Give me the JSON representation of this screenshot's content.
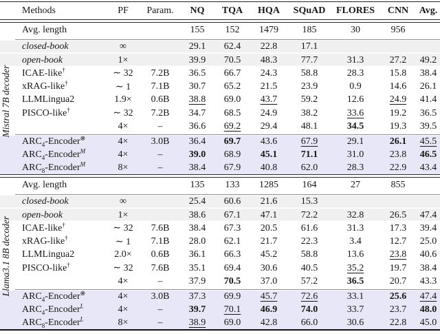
{
  "header": {
    "columns": [
      {
        "label": "Methods",
        "bold": false
      },
      {
        "label": "PF",
        "bold": false
      },
      {
        "label": "Param.",
        "bold": false
      },
      {
        "label": "NQ",
        "bold": true
      },
      {
        "label": "TQA",
        "bold": true
      },
      {
        "label": "HQA",
        "bold": true
      },
      {
        "label": "SQuAD",
        "bold": true
      },
      {
        "label": "FLORES",
        "bold": true
      },
      {
        "label": "CNN",
        "bold": true
      },
      {
        "label": "Avg.",
        "bold": true
      }
    ]
  },
  "colors": {
    "stripe": "#f0f0f0",
    "highlight": "#e7e7f7",
    "rule_dark": "#222222",
    "rule_gray": "#8f8f8f",
    "text": "#161616"
  },
  "sections": [
    {
      "label": "Mistral 7B decoder",
      "avg_length_label": "Avg. length",
      "avg_length": [
        "155",
        "152",
        "1479",
        "185",
        "30",
        "956",
        ""
      ],
      "rows": [
        {
          "method": {
            "parts": [
              {
                "t": "closed-book"
              }
            ],
            "italic": true
          },
          "pf": "∞",
          "param": "",
          "shade": true,
          "cells": [
            {
              "v": "29.1"
            },
            {
              "v": "62.4"
            },
            {
              "v": "22.8"
            },
            {
              "v": "17.1"
            },
            {
              "v": ""
            },
            {
              "v": ""
            },
            {
              "v": ""
            }
          ]
        },
        {
          "method": {
            "parts": [
              {
                "t": "open-book"
              }
            ],
            "italic": true
          },
          "pf": "1×",
          "param": "",
          "shade": true,
          "cells": [
            {
              "v": "39.9"
            },
            {
              "v": "70.5"
            },
            {
              "v": "48.3"
            },
            {
              "v": "77.7"
            },
            {
              "v": "31.3"
            },
            {
              "v": "27.2"
            },
            {
              "v": "49.2"
            }
          ]
        },
        {
          "method": {
            "parts": [
              {
                "t": "ICAE-like"
              },
              {
                "t": "†",
                "sup": true
              }
            ]
          },
          "pf": "∼ 32",
          "param": "7.2B",
          "cells": [
            {
              "v": "36.5"
            },
            {
              "v": "66.7"
            },
            {
              "v": "24.3"
            },
            {
              "v": "58.8"
            },
            {
              "v": "28.3"
            },
            {
              "v": "15.8"
            },
            {
              "v": "38.4"
            }
          ]
        },
        {
          "method": {
            "parts": [
              {
                "t": "xRAG-like"
              },
              {
                "t": "†",
                "sup": true
              }
            ]
          },
          "pf": "∼ 1",
          "param": "7.1B",
          "cells": [
            {
              "v": "30.7"
            },
            {
              "v": "65.2"
            },
            {
              "v": "21.5"
            },
            {
              "v": "23.9"
            },
            {
              "v": "0.9"
            },
            {
              "v": "14.6"
            },
            {
              "v": "26.1"
            }
          ]
        },
        {
          "method": {
            "parts": [
              {
                "t": "LLMLingua2"
              }
            ]
          },
          "pf": "1.9×",
          "param": "0.6B",
          "cells": [
            {
              "v": "38.8",
              "f": "u"
            },
            {
              "v": "69.0"
            },
            {
              "v": "43.7",
              "f": "u"
            },
            {
              "v": "59.2"
            },
            {
              "v": "12.6"
            },
            {
              "v": "24.9",
              "f": "u"
            },
            {
              "v": "41.4"
            }
          ]
        },
        {
          "method": {
            "parts": [
              {
                "t": "PISCO-like"
              },
              {
                "t": "†",
                "sup": true
              }
            ]
          },
          "pf": "∼ 32",
          "param": "7.2B",
          "cells": [
            {
              "v": "34.7"
            },
            {
              "v": "68.5"
            },
            {
              "v": "24.9"
            },
            {
              "v": "38.2"
            },
            {
              "v": "33.6",
              "f": "u"
            },
            {
              "v": "19.2"
            },
            {
              "v": "36.5"
            }
          ]
        },
        {
          "method": {
            "parts": [
              {
                "t": ""
              }
            ]
          },
          "pf": "4×",
          "param": "–",
          "cells": [
            {
              "v": "36.6"
            },
            {
              "v": "69.2",
              "f": "u"
            },
            {
              "v": "29.4"
            },
            {
              "v": "48.1"
            },
            {
              "v": "34.5",
              "f": "b"
            },
            {
              "v": "19.3"
            },
            {
              "v": "39.5"
            }
          ]
        }
      ],
      "arc_rows": [
        {
          "method": {
            "parts": [
              {
                "t": "ARC"
              },
              {
                "t": "4",
                "sub": true
              },
              {
                "t": "-Encoder"
              },
              {
                "t": "⊗",
                "sup": true
              }
            ]
          },
          "pf": "4×",
          "param": "3.0B",
          "cells": [
            {
              "v": "36.4"
            },
            {
              "v": "69.7",
              "f": "b"
            },
            {
              "v": "43.6"
            },
            {
              "v": "67.9",
              "f": "u"
            },
            {
              "v": "29.1"
            },
            {
              "v": "26.1",
              "f": "b"
            },
            {
              "v": "45.5",
              "f": "u"
            }
          ]
        },
        {
          "method": {
            "parts": [
              {
                "t": "ARC"
              },
              {
                "t": "4",
                "sub": true
              },
              {
                "t": "-Encoder"
              },
              {
                "t": "M",
                "sup": true,
                "i": true
              }
            ]
          },
          "pf": "4×",
          "param": "–",
          "cells": [
            {
              "v": "39.0",
              "f": "b"
            },
            {
              "v": "68.9"
            },
            {
              "v": "45.1",
              "f": "b"
            },
            {
              "v": "71.1",
              "f": "b"
            },
            {
              "v": "31.0"
            },
            {
              "v": "23.8"
            },
            {
              "v": "46.5",
              "f": "b"
            }
          ]
        },
        {
          "method": {
            "parts": [
              {
                "t": "ARC"
              },
              {
                "t": "8",
                "sub": true
              },
              {
                "t": "-Encoder"
              },
              {
                "t": "M",
                "sup": true,
                "i": true
              }
            ]
          },
          "pf": "8×",
          "param": "–",
          "cells": [
            {
              "v": "38.4"
            },
            {
              "v": "67.9"
            },
            {
              "v": "40.8"
            },
            {
              "v": "62.0"
            },
            {
              "v": "28.3"
            },
            {
              "v": "22.9"
            },
            {
              "v": "43.4"
            }
          ]
        }
      ]
    },
    {
      "label": "Llama3.1 8B decoder",
      "avg_length_label": "Avg. length",
      "avg_length": [
        "135",
        "133",
        "1285",
        "164",
        "27",
        "855",
        ""
      ],
      "rows": [
        {
          "method": {
            "parts": [
              {
                "t": "closed-book"
              }
            ],
            "italic": true
          },
          "pf": "∞",
          "param": "",
          "shade": true,
          "cells": [
            {
              "v": "25.4"
            },
            {
              "v": "60.6"
            },
            {
              "v": "21.6"
            },
            {
              "v": "15.3"
            },
            {
              "v": ""
            },
            {
              "v": ""
            },
            {
              "v": ""
            }
          ]
        },
        {
          "method": {
            "parts": [
              {
                "t": "open-book"
              }
            ],
            "italic": true
          },
          "pf": "1×",
          "param": "",
          "shade": true,
          "cells": [
            {
              "v": "38.6"
            },
            {
              "v": "67.1"
            },
            {
              "v": "47.1"
            },
            {
              "v": "72.2"
            },
            {
              "v": "32.8"
            },
            {
              "v": "26.5"
            },
            {
              "v": "47.4"
            }
          ]
        },
        {
          "method": {
            "parts": [
              {
                "t": "ICAE-like"
              },
              {
                "t": "†",
                "sup": true
              }
            ]
          },
          "pf": "∼ 32",
          "param": "7.6B",
          "cells": [
            {
              "v": "38.4"
            },
            {
              "v": "67.3"
            },
            {
              "v": "20.5"
            },
            {
              "v": "61.6"
            },
            {
              "v": "31.3"
            },
            {
              "v": "17.3"
            },
            {
              "v": "39.4"
            }
          ]
        },
        {
          "method": {
            "parts": [
              {
                "t": "xRAG-like"
              },
              {
                "t": "†",
                "sup": true
              }
            ]
          },
          "pf": "∼ 1",
          "param": "7.1B",
          "cells": [
            {
              "v": "28.0"
            },
            {
              "v": "62.1"
            },
            {
              "v": "21.7"
            },
            {
              "v": "22.3"
            },
            {
              "v": "3.4"
            },
            {
              "v": "12.7"
            },
            {
              "v": "25.0"
            }
          ]
        },
        {
          "method": {
            "parts": [
              {
                "t": "LLMLingua2"
              }
            ]
          },
          "pf": "2.0×",
          "param": "0.6B",
          "cells": [
            {
              "v": "36.1"
            },
            {
              "v": "66.3"
            },
            {
              "v": "45.2"
            },
            {
              "v": "58.8"
            },
            {
              "v": "13.6"
            },
            {
              "v": "23.8",
              "f": "u"
            },
            {
              "v": "40.6"
            }
          ]
        },
        {
          "method": {
            "parts": [
              {
                "t": "PISCO-like"
              },
              {
                "t": "†",
                "sup": true
              }
            ]
          },
          "pf": "∼ 32",
          "param": "7.6B",
          "cells": [
            {
              "v": "35.1"
            },
            {
              "v": "69.4"
            },
            {
              "v": "30.6"
            },
            {
              "v": "40.5"
            },
            {
              "v": "35.2",
              "f": "u"
            },
            {
              "v": "19.7"
            },
            {
              "v": "38.4"
            }
          ]
        },
        {
          "method": {
            "parts": [
              {
                "t": ""
              }
            ]
          },
          "pf": "4×",
          "param": "–",
          "cells": [
            {
              "v": "37.9"
            },
            {
              "v": "70.5",
              "f": "b"
            },
            {
              "v": "37.0"
            },
            {
              "v": "57.2"
            },
            {
              "v": "36.5",
              "f": "b"
            },
            {
              "v": "20.7"
            },
            {
              "v": "43.3"
            }
          ]
        }
      ],
      "arc_rows": [
        {
          "method": {
            "parts": [
              {
                "t": "ARC"
              },
              {
                "t": "4",
                "sub": true
              },
              {
                "t": "-Encoder"
              },
              {
                "t": "⊗",
                "sup": true
              }
            ]
          },
          "pf": "4×",
          "param": "3.0B",
          "cells": [
            {
              "v": "37.3"
            },
            {
              "v": "69.9"
            },
            {
              "v": "45.7",
              "f": "u"
            },
            {
              "v": "72.6",
              "f": "u"
            },
            {
              "v": "33.1"
            },
            {
              "v": "25.6",
              "f": "b"
            },
            {
              "v": "47.4",
              "f": "u"
            }
          ]
        },
        {
          "method": {
            "parts": [
              {
                "t": "ARC"
              },
              {
                "t": "4",
                "sub": true
              },
              {
                "t": "-Encoder"
              },
              {
                "t": "L",
                "sup": true,
                "i": true
              }
            ]
          },
          "pf": "4×",
          "param": "–",
          "cells": [
            {
              "v": "39.7",
              "f": "b"
            },
            {
              "v": "70.1",
              "f": "u"
            },
            {
              "v": "46.9",
              "f": "b"
            },
            {
              "v": "74.0",
              "f": "b"
            },
            {
              "v": "33.7"
            },
            {
              "v": "23.7"
            },
            {
              "v": "48.0",
              "f": "b"
            }
          ]
        },
        {
          "method": {
            "parts": [
              {
                "t": "ARC"
              },
              {
                "t": "8",
                "sub": true
              },
              {
                "t": "-Encoder"
              },
              {
                "t": "L",
                "sup": true,
                "i": true
              }
            ]
          },
          "pf": "8×",
          "param": "–",
          "cells": [
            {
              "v": "38.9",
              "f": "u"
            },
            {
              "v": "69.0"
            },
            {
              "v": "42.8"
            },
            {
              "v": "66.0"
            },
            {
              "v": "30.6"
            },
            {
              "v": "22.8"
            },
            {
              "v": "45.0"
            }
          ]
        }
      ]
    }
  ]
}
